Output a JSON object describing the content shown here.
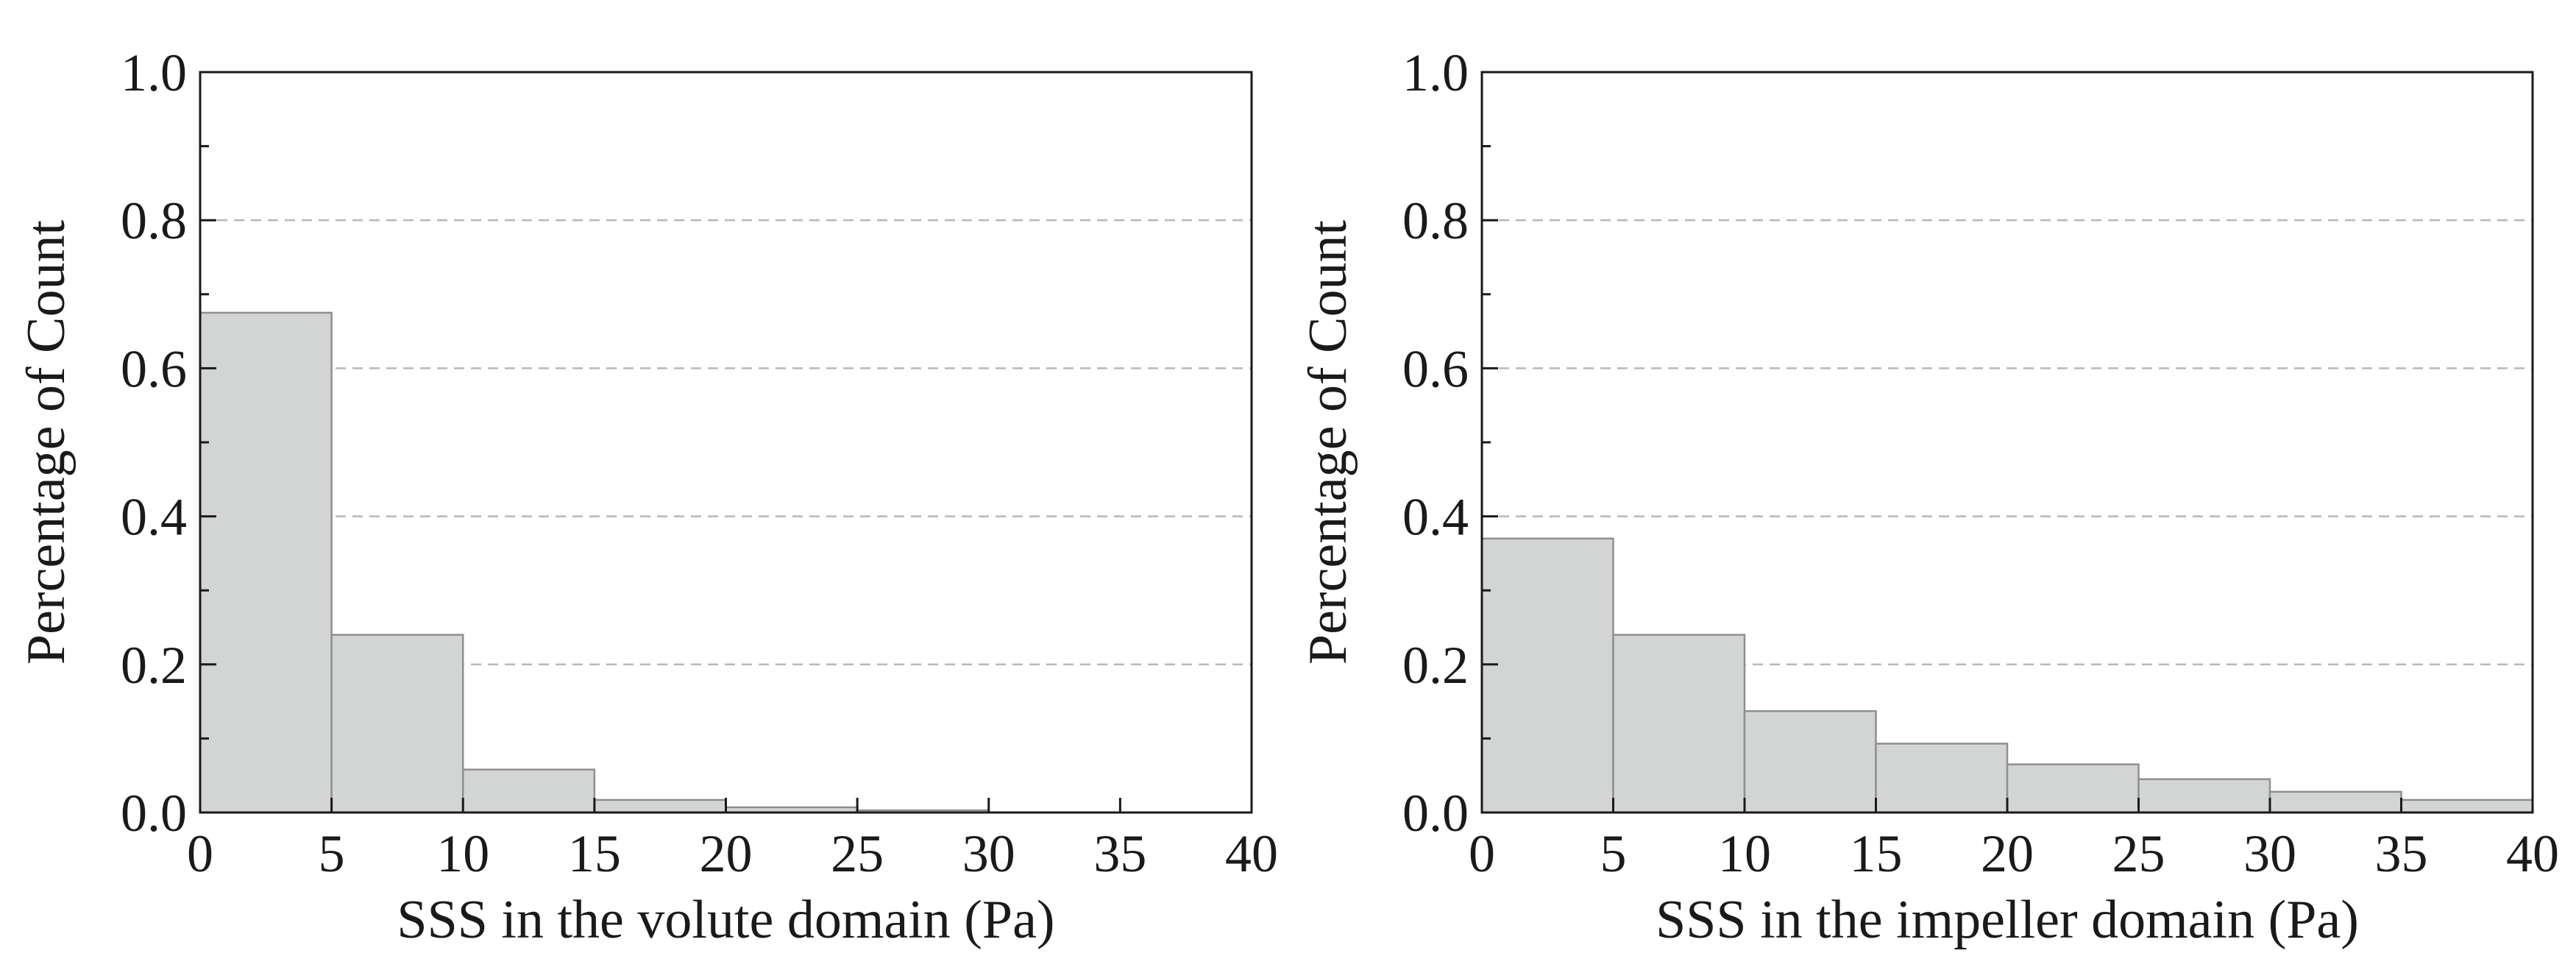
{
  "chart_data": [
    {
      "type": "bar",
      "title": "",
      "xlabel": "SSS in the volute domain (Pa)",
      "ylabel": "Percentage of Count",
      "xlim": [
        0,
        40
      ],
      "ylim": [
        0,
        1.0
      ],
      "xticks": [
        "0",
        "5",
        "10",
        "15",
        "20",
        "25",
        "30",
        "35",
        "40"
      ],
      "yticks": [
        "0.0",
        "0.2",
        "0.4",
        "0.6",
        "0.8",
        "1.0"
      ],
      "grid": true,
      "bin_width": 5,
      "bins": [
        {
          "start": 0,
          "end": 5,
          "value": 0.675
        },
        {
          "start": 5,
          "end": 10,
          "value": 0.24
        },
        {
          "start": 10,
          "end": 15,
          "value": 0.058
        },
        {
          "start": 15,
          "end": 20,
          "value": 0.017
        },
        {
          "start": 20,
          "end": 25,
          "value": 0.007
        },
        {
          "start": 25,
          "end": 30,
          "value": 0.003
        },
        {
          "start": 30,
          "end": 35,
          "value": 0.0
        }
      ],
      "bar_color": "#d3d5d4"
    },
    {
      "type": "bar",
      "title": "",
      "xlabel": "SSS in the impeller domain (Pa)",
      "ylabel": "Percentage of Count",
      "xlim": [
        0,
        40
      ],
      "ylim": [
        0,
        1.0
      ],
      "xticks": [
        "0",
        "5",
        "10",
        "15",
        "20",
        "25",
        "30",
        "35",
        "40"
      ],
      "yticks": [
        "0.0",
        "0.2",
        "0.4",
        "0.6",
        "0.8",
        "1.0"
      ],
      "grid": true,
      "bin_width": 5,
      "bins": [
        {
          "start": 0,
          "end": 5,
          "value": 0.37
        },
        {
          "start": 5,
          "end": 10,
          "value": 0.24
        },
        {
          "start": 10,
          "end": 15,
          "value": 0.137
        },
        {
          "start": 15,
          "end": 20,
          "value": 0.093
        },
        {
          "start": 20,
          "end": 25,
          "value": 0.065
        },
        {
          "start": 25,
          "end": 30,
          "value": 0.045
        },
        {
          "start": 30,
          "end": 35,
          "value": 0.028
        },
        {
          "start": 35,
          "end": 40,
          "value": 0.017
        }
      ],
      "bar_color": "#d3d5d4"
    }
  ]
}
